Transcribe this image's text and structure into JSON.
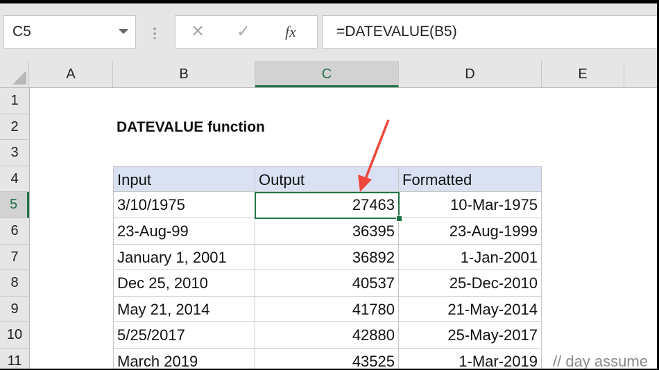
{
  "name_box": "C5",
  "formula_bar": {
    "cancel_icon": "✕",
    "enter_icon": "✓",
    "fx_label": "fx",
    "formula": "=DATEVALUE(B5)"
  },
  "columns": [
    "A",
    "B",
    "C",
    "D",
    "E"
  ],
  "rows": [
    "1",
    "2",
    "3",
    "4",
    "5",
    "6",
    "7",
    "8",
    "9",
    "10",
    "11"
  ],
  "selected_cell": "C5",
  "title": "DATEVALUE function",
  "table": {
    "headers": [
      "Input",
      "Output",
      "Formatted"
    ],
    "rows": [
      [
        "3/10/1975",
        "27463",
        "10-Mar-1975"
      ],
      [
        "23-Aug-99",
        "36395",
        "23-Aug-1999"
      ],
      [
        "January 1, 2001",
        "36892",
        "1-Jan-2001"
      ],
      [
        "Dec 25, 2010",
        "40537",
        "25-Dec-2010"
      ],
      [
        "May 21, 2014",
        "41780",
        "21-May-2014"
      ],
      [
        "5/25/2017",
        "42880",
        "25-May-2017"
      ],
      [
        "March 2019",
        "43525",
        "1-Mar-2019"
      ]
    ]
  },
  "note": "// day assume",
  "colors": {
    "accent": "#217346",
    "header_fill": "#d9e1f2",
    "arrow": "#f0463c"
  }
}
